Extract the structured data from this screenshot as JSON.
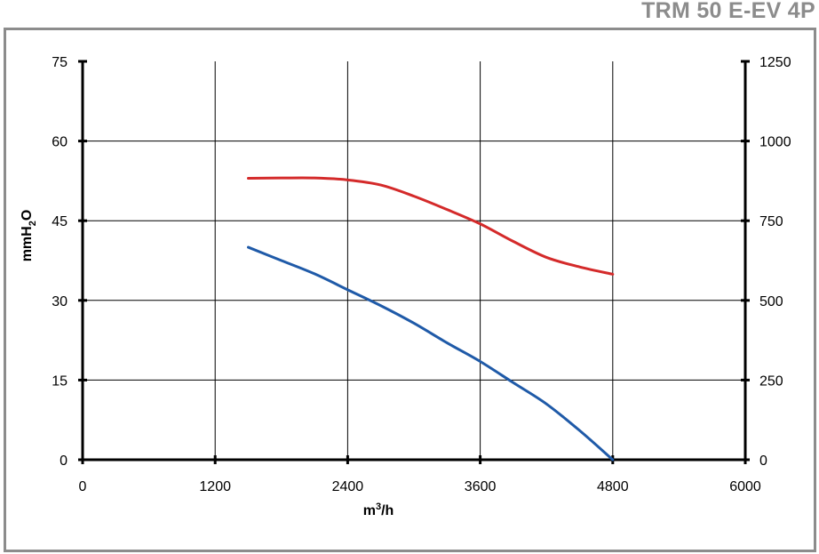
{
  "header": {
    "model": "TRM 50 E-EV 4P"
  },
  "chart_data": {
    "type": "line",
    "xlabel": "m³/h",
    "ylabel_left": "mmH₂O",
    "ylabel_right": "",
    "xlim": [
      0,
      6000
    ],
    "ylim_left": [
      0,
      75
    ],
    "ylim_right": [
      0,
      1250
    ],
    "x_ticks": [
      "0",
      "1200",
      "2400",
      "3600",
      "4800",
      "6000"
    ],
    "y_left_ticks": [
      "0",
      "15",
      "30",
      "45",
      "60",
      "75"
    ],
    "y_right_ticks": [
      "0",
      "250",
      "500",
      "750",
      "1000",
      "1250"
    ],
    "grid": true,
    "series": [
      {
        "axis": "right",
        "color": "#d42a2a",
        "x": [
          1500,
          1800,
          2100,
          2400,
          2700,
          3000,
          3300,
          3600,
          3900,
          4200,
          4500,
          4800
        ],
        "y": [
          883,
          884,
          884,
          878,
          862,
          827,
          785,
          740,
          685,
          635,
          605,
          582
        ]
      },
      {
        "axis": "left",
        "color": "#1f5aa8",
        "x": [
          1500,
          1800,
          2100,
          2400,
          2700,
          3000,
          3300,
          3600,
          3900,
          4200,
          4500,
          4800
        ],
        "y": [
          40,
          37.5,
          35,
          32,
          29,
          25.7,
          22,
          18.5,
          14.5,
          10.5,
          5.5,
          0
        ]
      }
    ]
  }
}
